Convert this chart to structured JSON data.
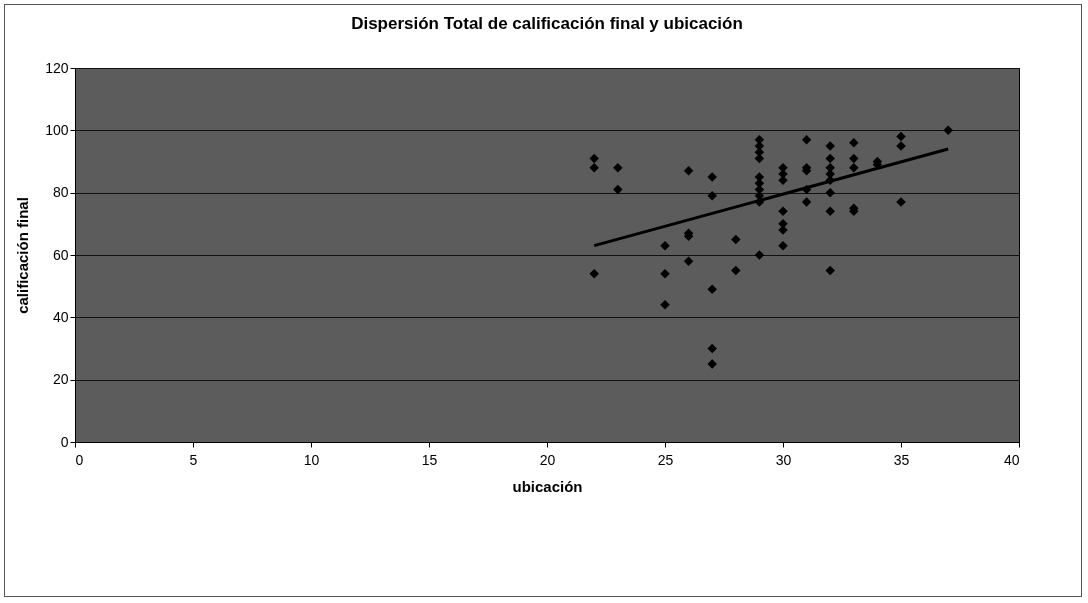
{
  "chart_data": {
    "type": "scatter",
    "title": "Dispersión Total de calificación final y ubicación",
    "xlabel": "ubicación",
    "ylabel": "calificación final",
    "xlim": [
      0,
      40
    ],
    "xticks": [
      0,
      5,
      10,
      15,
      20,
      25,
      30,
      35,
      40
    ],
    "ylim": [
      0,
      120
    ],
    "yticks": [
      0,
      20,
      40,
      60,
      80,
      100,
      120
    ],
    "grid": "y",
    "series": [
      {
        "marker": "diamond",
        "color": "#000000",
        "x": [
          22,
          22,
          22,
          23,
          23,
          25,
          25,
          25,
          26,
          26,
          26,
          26,
          27,
          27,
          27,
          27,
          27,
          28,
          28,
          29,
          29,
          29,
          29,
          29,
          29,
          29,
          29,
          29,
          29,
          30,
          30,
          30,
          30,
          30,
          30,
          30,
          31,
          31,
          31,
          31,
          31,
          32,
          32,
          32,
          32,
          32,
          32,
          32,
          32,
          33,
          33,
          33,
          33,
          33,
          34,
          34,
          35,
          35,
          35,
          37
        ],
        "values": [
          91,
          88,
          54,
          88,
          81,
          63,
          54,
          44,
          87,
          67,
          66,
          58,
          85,
          79,
          49,
          30,
          25,
          65,
          55,
          97,
          95,
          93,
          91,
          85,
          83,
          81,
          79,
          77,
          60,
          88,
          86,
          84,
          74,
          70,
          68,
          63,
          97,
          88,
          87,
          81,
          77,
          95,
          91,
          88,
          86,
          84,
          80,
          74,
          55,
          96,
          91,
          88,
          75,
          74,
          90,
          89,
          98,
          95,
          77,
          100
        ]
      },
      {
        "type": "line",
        "color": "#000000",
        "x": [
          22,
          37
        ],
        "values": [
          63,
          94
        ]
      }
    ]
  }
}
